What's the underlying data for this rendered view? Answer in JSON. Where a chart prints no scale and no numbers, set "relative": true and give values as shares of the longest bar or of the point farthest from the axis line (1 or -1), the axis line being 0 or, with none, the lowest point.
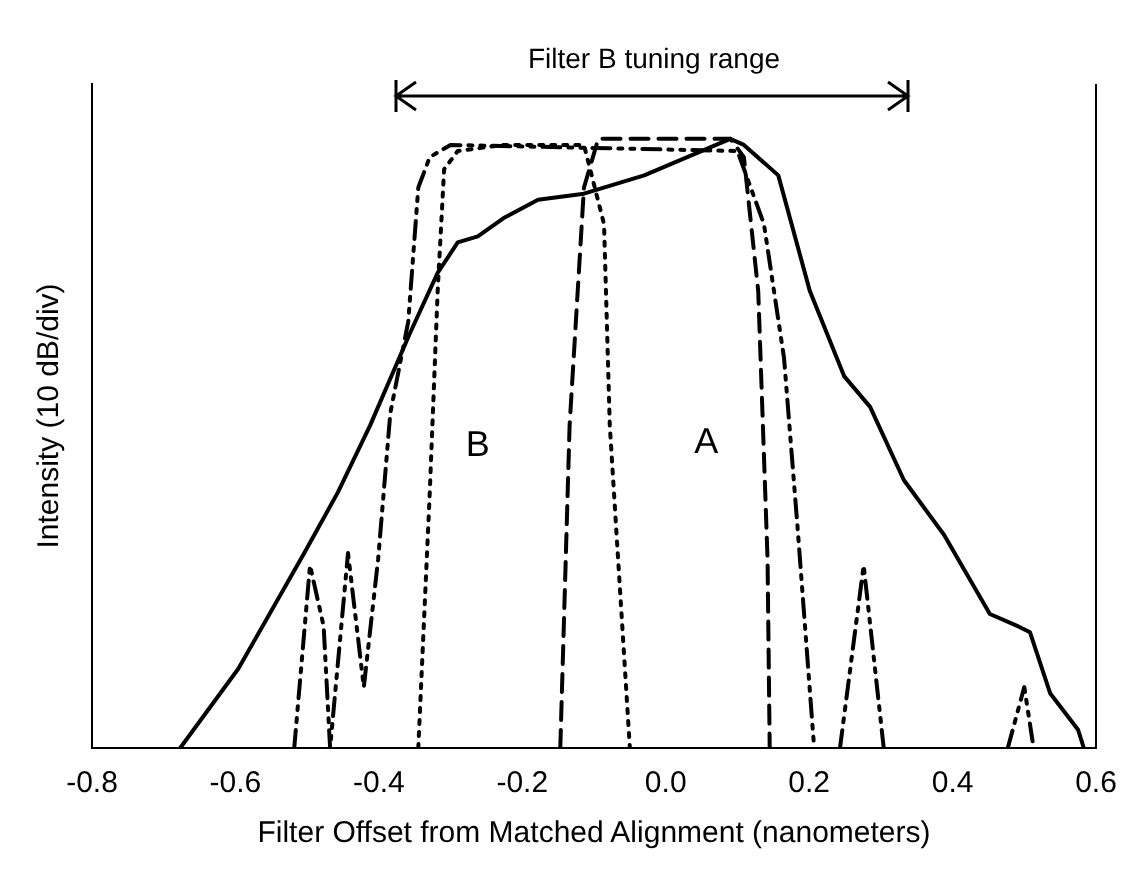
{
  "chart_data": {
    "type": "line",
    "xlabel": "Filter Offset from Matched Alignment (nanometers)",
    "ylabel": "Intensity (10 dB/div)",
    "relative": true,
    "xlim": [
      -0.8,
      0.6
    ],
    "xticks": [
      {
        "value": -0.8,
        "label": "-0.8"
      },
      {
        "value": -0.6,
        "label": "-0.6"
      },
      {
        "value": -0.4,
        "label": "-0.4"
      },
      {
        "value": -0.2,
        "label": "-0.2"
      },
      {
        "value": 0,
        "label": "0.0"
      },
      {
        "value": 0.2,
        "label": "0.2"
      },
      {
        "value": 0.4,
        "label": "0.4"
      },
      {
        "value": 0.6,
        "label": "0.6"
      }
    ],
    "grid": false,
    "legend": false,
    "marker": "none",
    "annotations": [
      "Filter B tuning range"
    ],
    "series": [
      {
        "color": "#000000",
        "line_style": "solid",
        "x": [
          -0.677,
          -0.596,
          -0.504,
          -0.457,
          -0.412,
          -0.357,
          -0.318,
          -0.29,
          -0.262,
          -0.226,
          -0.178,
          -0.114,
          -0.03,
          0.09,
          0.109,
          0.157,
          0.201,
          0.249,
          0.285,
          0.332,
          0.388,
          0.452,
          0.491,
          0.508,
          0.536,
          0.575,
          0.583
        ],
        "values": [
          0,
          0.13,
          0.32,
          0.42,
          0.53,
          0.68,
          0.78,
          0.83,
          0.84,
          0.87,
          0.9,
          0.91,
          0.94,
          1,
          0.99,
          0.94,
          0.75,
          0.61,
          0.56,
          0.44,
          0.35,
          0.22,
          0.2,
          0.19,
          0.09,
          0.03,
          0
        ]
      },
      {
        "name": "A",
        "color": "#000000",
        "line_style": "dashed",
        "x": [
          -0.147,
          -0.134,
          -0.114,
          -0.094,
          0.09,
          0.109,
          0.129,
          0.142,
          0.145
        ],
        "values": [
          0,
          0.53,
          0.92,
          1,
          1,
          0.97,
          0.75,
          0.31,
          0
        ]
      },
      {
        "name": "B",
        "color": "#000000",
        "line_style": "dotted",
        "x": [
          -0.345,
          -0.329,
          -0.318,
          -0.309,
          -0.29,
          -0.226,
          -0.114,
          -0.086,
          -0.078,
          -0.05
        ],
        "values": [
          0,
          0.42,
          0.75,
          0.95,
          0.98,
          0.99,
          0.99,
          0.86,
          0.53,
          0
        ]
      },
      {
        "color": "#000000",
        "line_style": "dashdot",
        "x": [
          -0.518,
          -0.496,
          -0.477,
          -0.468,
          -0.443,
          -0.421,
          -0.401,
          -0.384,
          -0.359,
          -0.345,
          -0.329,
          -0.3,
          0.1,
          0.137,
          0.165,
          0.184,
          0.207,
          0.225,
          0.243,
          0.276,
          0.304,
          0.4,
          0.477,
          0.5,
          0.513
        ],
        "values": [
          0,
          0.3,
          0.2,
          0,
          0.32,
          0.1,
          0.31,
          0.55,
          0.7,
          0.92,
          0.97,
          0.99,
          0.98,
          0.86,
          0.64,
          0.36,
          0,
          null,
          0,
          0.3,
          0,
          null,
          0,
          0.1,
          0
        ]
      }
    ]
  }
}
